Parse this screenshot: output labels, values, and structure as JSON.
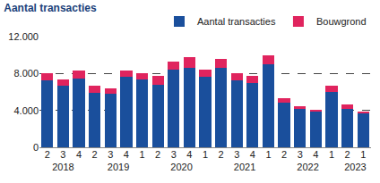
{
  "chart_data": {
    "type": "bar",
    "title": "Aantal transacties",
    "stacked": true,
    "grid": true,
    "legend": "top right",
    "categories": [
      [
        "2018",
        "2"
      ],
      [
        "2018",
        "3"
      ],
      [
        "2018",
        "4"
      ],
      [
        "2019",
        "1"
      ],
      [
        "2019",
        "2"
      ],
      [
        "2019",
        "3"
      ],
      [
        "2019",
        "4"
      ],
      [
        "2020",
        "1"
      ],
      [
        "2020",
        "2"
      ],
      [
        "2020",
        "3"
      ],
      [
        "2020",
        "4"
      ],
      [
        "2021",
        "1"
      ],
      [
        "2021",
        "2"
      ],
      [
        "2021",
        "3"
      ],
      [
        "2021",
        "4"
      ],
      [
        "2022",
        "1"
      ],
      [
        "2022",
        "2"
      ],
      [
        "2022",
        "3"
      ],
      [
        "2022",
        "4"
      ],
      [
        "2023",
        "1"
      ],
      [
        "2023",
        "2"
      ]
    ],
    "series": [
      {
        "name": "Aantal transacties",
        "color": "#1a4f9c",
        "values": [
          7300,
          6700,
          7500,
          7400,
          5900,
          5800,
          7600,
          7600,
          6800,
          8400,
          8600,
          9000,
          8600,
          7300,
          7000,
          6000,
          4800,
          4200,
          3900,
          3700,
          4200
        ]
      },
      {
        "name": "Bouwgrond",
        "color": "#e0245e",
        "values": [
          700,
          700,
          800,
          600,
          800,
          600,
          700,
          800,
          900,
          900,
          1200,
          1000,
          1000,
          700,
          700,
          700,
          500,
          300,
          200,
          200,
          400
        ]
      }
    ],
    "ylim": [
      0,
      12000
    ],
    "yticks": [
      0,
      {
        "value": 4000,
        "label": "4.000"
      },
      {
        "value": 8000,
        "label": "8.000"
      },
      {
        "value": 12000,
        "label": "12.000"
      }
    ]
  }
}
